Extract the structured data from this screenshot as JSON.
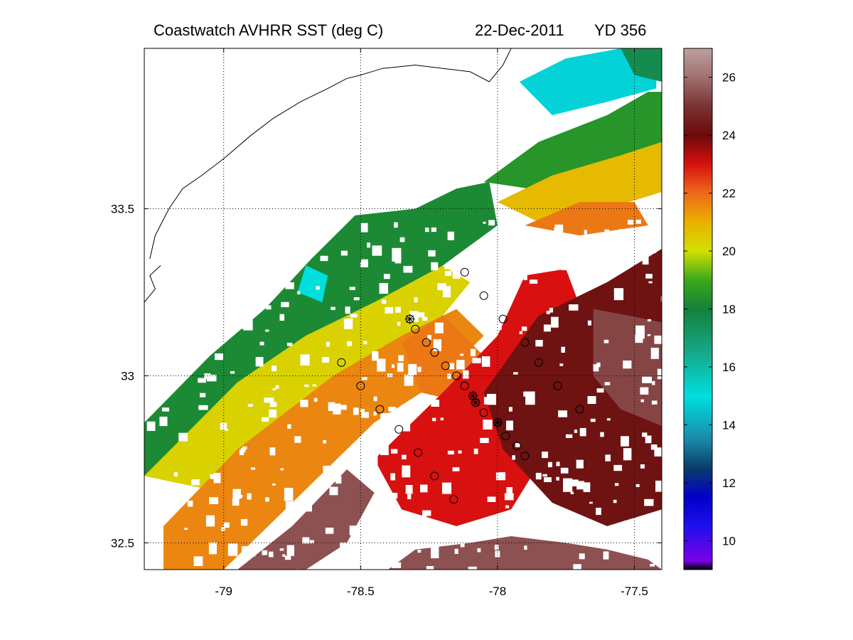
{
  "title": {
    "product": "Coastwatch   AVHRR   SST  (deg C)",
    "date": "22-Dec-2011",
    "yearday": "YD 356"
  },
  "map": {
    "lon_range": [
      -79.29,
      -77.4
    ],
    "lat_range": [
      32.42,
      33.98
    ],
    "x_ticks": [
      {
        "value": -79,
        "label": "-79"
      },
      {
        "value": -78.5,
        "label": "-78.5"
      },
      {
        "value": -78,
        "label": "-78"
      },
      {
        "value": -77.5,
        "label": "-77.5"
      }
    ],
    "y_ticks": [
      {
        "value": 33.5,
        "label": "33.5"
      },
      {
        "value": 33,
        "label": "33"
      },
      {
        "value": 32.5,
        "label": "32.5"
      }
    ],
    "grid": "dotted",
    "coastline_color": "#000000",
    "land_and_cloud_color": "#ffffff"
  },
  "colorbar": {
    "range": [
      9,
      27
    ],
    "ticks": [
      {
        "value": 10,
        "label": "10"
      },
      {
        "value": 12,
        "label": "12"
      },
      {
        "value": 14,
        "label": "14"
      },
      {
        "value": 16,
        "label": "16"
      },
      {
        "value": 18,
        "label": "18"
      },
      {
        "value": 20,
        "label": "20"
      },
      {
        "value": 22,
        "label": "22"
      },
      {
        "value": 24,
        "label": "24"
      },
      {
        "value": 26,
        "label": "26"
      }
    ],
    "stops": [
      {
        "value": 9,
        "color": "#000000"
      },
      {
        "value": 9.3,
        "color": "#7a00e6"
      },
      {
        "value": 10.5,
        "color": "#1e10ee"
      },
      {
        "value": 11.5,
        "color": "#0000c8"
      },
      {
        "value": 12.5,
        "color": "#0a3c6a"
      },
      {
        "value": 13.5,
        "color": "#1a8aaa"
      },
      {
        "value": 15,
        "color": "#00dede"
      },
      {
        "value": 16.5,
        "color": "#16a888"
      },
      {
        "value": 18,
        "color": "#14823a"
      },
      {
        "value": 19,
        "color": "#3aa81a"
      },
      {
        "value": 20,
        "color": "#d2e000"
      },
      {
        "value": 21,
        "color": "#eab000"
      },
      {
        "value": 22,
        "color": "#ec6a1a"
      },
      {
        "value": 23,
        "color": "#d81010"
      },
      {
        "value": 24,
        "color": "#6c0a0a"
      },
      {
        "value": 25,
        "color": "#7a3232"
      },
      {
        "value": 26,
        "color": "#a07070"
      },
      {
        "value": 27,
        "color": "#bea0a0"
      }
    ]
  },
  "sst_regions": [
    {
      "name": "shelf-green",
      "sst": 18.2,
      "polygon": [
        [
          -79.29,
          32.86
        ],
        [
          -79.05,
          33.06
        ],
        [
          -78.85,
          33.2
        ],
        [
          -78.68,
          33.35
        ],
        [
          -78.52,
          33.48
        ],
        [
          -78.3,
          33.5
        ],
        [
          -78.15,
          33.56
        ],
        [
          -78.03,
          33.58
        ],
        [
          -78.0,
          33.45
        ],
        [
          -78.2,
          33.33
        ],
        [
          -78.45,
          33.22
        ],
        [
          -78.7,
          33.12
        ],
        [
          -78.95,
          32.98
        ],
        [
          -79.29,
          32.7
        ]
      ]
    },
    {
      "name": "nearshore-cyan",
      "sst": 15.0,
      "polygon": [
        [
          -78.7,
          33.33
        ],
        [
          -78.62,
          33.3
        ],
        [
          -78.64,
          33.22
        ],
        [
          -78.73,
          33.25
        ]
      ]
    },
    {
      "name": "mid-yellow",
      "sst": 20.3,
      "polygon": [
        [
          -79.29,
          32.7
        ],
        [
          -78.95,
          32.98
        ],
        [
          -78.7,
          33.12
        ],
        [
          -78.45,
          33.22
        ],
        [
          -78.2,
          33.33
        ],
        [
          -78.1,
          33.28
        ],
        [
          -78.2,
          33.18
        ],
        [
          -78.45,
          33.05
        ],
        [
          -78.75,
          32.88
        ],
        [
          -79.0,
          32.65
        ]
      ]
    },
    {
      "name": "mid-orange",
      "sst": 21.6,
      "polygon": [
        [
          -79.22,
          32.55
        ],
        [
          -78.95,
          32.78
        ],
        [
          -78.6,
          33.0
        ],
        [
          -78.35,
          33.12
        ],
        [
          -78.15,
          33.2
        ],
        [
          -78.05,
          33.12
        ],
        [
          -78.22,
          32.98
        ],
        [
          -78.45,
          32.86
        ],
        [
          -78.75,
          32.62
        ],
        [
          -79.0,
          32.42
        ],
        [
          -79.22,
          32.42
        ]
      ]
    },
    {
      "name": "outer-shelf-orange",
      "sst": 21.8,
      "polygon": [
        [
          -78.35,
          33.1
        ],
        [
          -78.2,
          33.18
        ],
        [
          -78.1,
          33.1
        ],
        [
          -78.0,
          33.02
        ],
        [
          -78.12,
          32.92
        ],
        [
          -78.28,
          32.95
        ]
      ]
    },
    {
      "name": "gulf-stream-red",
      "sst": 23.0,
      "polygon": [
        [
          -78.45,
          32.75
        ],
        [
          -78.2,
          32.95
        ],
        [
          -78.0,
          33.12
        ],
        [
          -77.9,
          33.3
        ],
        [
          -77.75,
          33.32
        ],
        [
          -77.65,
          33.1
        ],
        [
          -77.8,
          32.8
        ],
        [
          -77.95,
          32.6
        ],
        [
          -78.15,
          32.55
        ],
        [
          -78.35,
          32.6
        ]
      ]
    },
    {
      "name": "gulf-stream-core",
      "sst": 24.2,
      "polygon": [
        [
          -78.05,
          32.95
        ],
        [
          -77.85,
          33.18
        ],
        [
          -77.6,
          33.28
        ],
        [
          -77.4,
          33.38
        ],
        [
          -77.4,
          32.6
        ],
        [
          -77.6,
          32.55
        ],
        [
          -77.8,
          32.62
        ],
        [
          -77.98,
          32.78
        ]
      ]
    },
    {
      "name": "offshore-warm",
      "sst": 25.3,
      "polygon": [
        [
          -77.65,
          33.2
        ],
        [
          -77.52,
          33.18
        ],
        [
          -77.4,
          33.16
        ],
        [
          -77.4,
          32.85
        ],
        [
          -77.55,
          32.9
        ],
        [
          -77.65,
          33.0
        ]
      ]
    },
    {
      "name": "southwest-warm",
      "sst": 25.5,
      "polygon": [
        [
          -78.95,
          32.42
        ],
        [
          -78.75,
          32.55
        ],
        [
          -78.55,
          32.72
        ],
        [
          -78.45,
          32.65
        ],
        [
          -78.55,
          32.5
        ],
        [
          -78.7,
          32.42
        ]
      ]
    },
    {
      "name": "south-warm",
      "sst": 25.5,
      "polygon": [
        [
          -78.4,
          32.42
        ],
        [
          -78.3,
          32.48
        ],
        [
          -78.1,
          32.5
        ],
        [
          -77.95,
          32.52
        ],
        [
          -77.75,
          32.5
        ],
        [
          -77.6,
          32.48
        ],
        [
          -77.45,
          32.45
        ],
        [
          -77.4,
          32.42
        ]
      ]
    },
    {
      "name": "northeast-green",
      "sst": 18.5,
      "polygon": [
        [
          -78.05,
          33.58
        ],
        [
          -77.85,
          33.7
        ],
        [
          -77.6,
          33.78
        ],
        [
          -77.45,
          33.85
        ],
        [
          -77.4,
          33.85
        ],
        [
          -77.4,
          33.56
        ],
        [
          -77.55,
          33.58
        ],
        [
          -77.8,
          33.55
        ]
      ]
    },
    {
      "name": "northeast-yellow",
      "sst": 20.8,
      "polygon": [
        [
          -78.0,
          33.52
        ],
        [
          -77.8,
          33.6
        ],
        [
          -77.55,
          33.66
        ],
        [
          -77.4,
          33.7
        ],
        [
          -77.4,
          33.55
        ],
        [
          -77.6,
          33.5
        ],
        [
          -77.85,
          33.46
        ]
      ]
    },
    {
      "name": "northeast-orange",
      "sst": 21.8,
      "polygon": [
        [
          -77.9,
          33.45
        ],
        [
          -77.7,
          33.52
        ],
        [
          -77.5,
          33.52
        ],
        [
          -77.45,
          33.45
        ],
        [
          -77.7,
          33.42
        ]
      ]
    },
    {
      "name": "northeast-cyan",
      "sst": 14.8,
      "polygon": [
        [
          -77.92,
          33.88
        ],
        [
          -77.75,
          33.95
        ],
        [
          -77.55,
          33.98
        ],
        [
          -77.42,
          33.96
        ],
        [
          -77.42,
          33.86
        ],
        [
          -77.6,
          33.82
        ],
        [
          -77.8,
          33.78
        ]
      ]
    },
    {
      "name": "northeast-shelf-green",
      "sst": 17.6,
      "polygon": [
        [
          -77.55,
          33.98
        ],
        [
          -77.4,
          33.98
        ],
        [
          -77.4,
          33.88
        ],
        [
          -77.5,
          33.9
        ]
      ]
    }
  ],
  "coastline": [
    [
      -79.27,
      33.35
    ],
    [
      -79.25,
      33.42
    ],
    [
      -79.2,
      33.5
    ],
    [
      -79.15,
      33.56
    ],
    [
      -79.08,
      33.6
    ],
    [
      -79.0,
      33.65
    ],
    [
      -78.9,
      33.72
    ],
    [
      -78.82,
      33.77
    ],
    [
      -78.72,
      33.82
    ],
    [
      -78.62,
      33.86
    ],
    [
      -78.55,
      33.89
    ],
    [
      -78.5,
      33.9
    ],
    [
      -78.42,
      33.92
    ],
    [
      -78.3,
      33.93
    ],
    [
      -78.2,
      33.92
    ],
    [
      -78.1,
      33.91
    ],
    [
      -78.03,
      33.88
    ],
    [
      -77.98,
      33.93
    ],
    [
      -77.95,
      33.98
    ]
  ],
  "coastline_inlets": [
    [
      [
        -79.29,
        33.22
      ],
      [
        -79.25,
        33.26
      ],
      [
        -79.27,
        33.3
      ],
      [
        -79.23,
        33.33
      ]
    ]
  ],
  "stations": [
    {
      "lon": -78.12,
      "lat": 33.31,
      "mark": "circle"
    },
    {
      "lon": -78.05,
      "lat": 33.24,
      "mark": "circle"
    },
    {
      "lon": -77.98,
      "lat": 33.17,
      "mark": "circle"
    },
    {
      "lon": -78.32,
      "lat": 33.17,
      "mark": "star"
    },
    {
      "lon": -78.3,
      "lat": 33.14,
      "mark": "circle"
    },
    {
      "lon": -78.26,
      "lat": 33.1,
      "mark": "circle"
    },
    {
      "lon": -78.23,
      "lat": 33.07,
      "mark": "circle"
    },
    {
      "lon": -78.19,
      "lat": 33.03,
      "mark": "circle"
    },
    {
      "lon": -78.15,
      "lat": 33.0,
      "mark": "circle"
    },
    {
      "lon": -78.12,
      "lat": 32.97,
      "mark": "circle"
    },
    {
      "lon": -78.09,
      "lat": 32.94,
      "mark": "star"
    },
    {
      "lon": -78.08,
      "lat": 32.92,
      "mark": "star"
    },
    {
      "lon": -78.05,
      "lat": 32.89,
      "mark": "circle"
    },
    {
      "lon": -78.0,
      "lat": 32.86,
      "mark": "star"
    },
    {
      "lon": -77.97,
      "lat": 32.82,
      "mark": "circle"
    },
    {
      "lon": -77.93,
      "lat": 32.79,
      "mark": "circle"
    },
    {
      "lon": -77.9,
      "lat": 32.76,
      "mark": "circle"
    },
    {
      "lon": -77.9,
      "lat": 33.1,
      "mark": "circle"
    },
    {
      "lon": -77.85,
      "lat": 33.04,
      "mark": "circle"
    },
    {
      "lon": -77.78,
      "lat": 32.97,
      "mark": "circle"
    },
    {
      "lon": -77.7,
      "lat": 32.9,
      "mark": "circle"
    },
    {
      "lon": -78.57,
      "lat": 33.04,
      "mark": "circle"
    },
    {
      "lon": -78.5,
      "lat": 32.97,
      "mark": "circle"
    },
    {
      "lon": -78.43,
      "lat": 32.9,
      "mark": "circle"
    },
    {
      "lon": -78.36,
      "lat": 32.84,
      "mark": "circle"
    },
    {
      "lon": -78.29,
      "lat": 32.77,
      "mark": "circle"
    },
    {
      "lon": -78.23,
      "lat": 32.7,
      "mark": "circle-dot"
    },
    {
      "lon": -78.16,
      "lat": 32.63,
      "mark": "circle"
    }
  ]
}
